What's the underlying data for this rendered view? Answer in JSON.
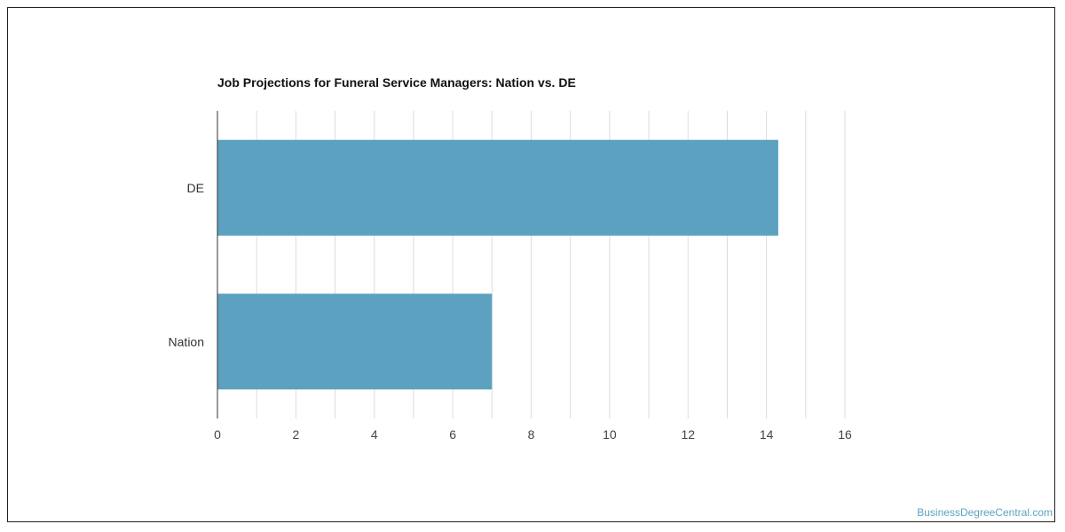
{
  "chart_data": {
    "type": "bar",
    "orientation": "horizontal",
    "title": "Job Projections for Funeral Service Managers: Nation vs. DE",
    "categories": [
      "DE",
      "Nation"
    ],
    "values": [
      14.3,
      7
    ],
    "xlabel": "",
    "ylabel": "",
    "xlim": [
      0,
      16
    ],
    "x_ticks": [
      0,
      2,
      4,
      6,
      8,
      10,
      12,
      14,
      16
    ],
    "grid": true,
    "bar_color": "#5ca1bf",
    "grid_color": "#dddddd",
    "axis_color": "#333333"
  },
  "credit": "BusinessDegreeCentral.com",
  "colors": {
    "credit": "#5ba3c2",
    "frame": "#222222"
  }
}
